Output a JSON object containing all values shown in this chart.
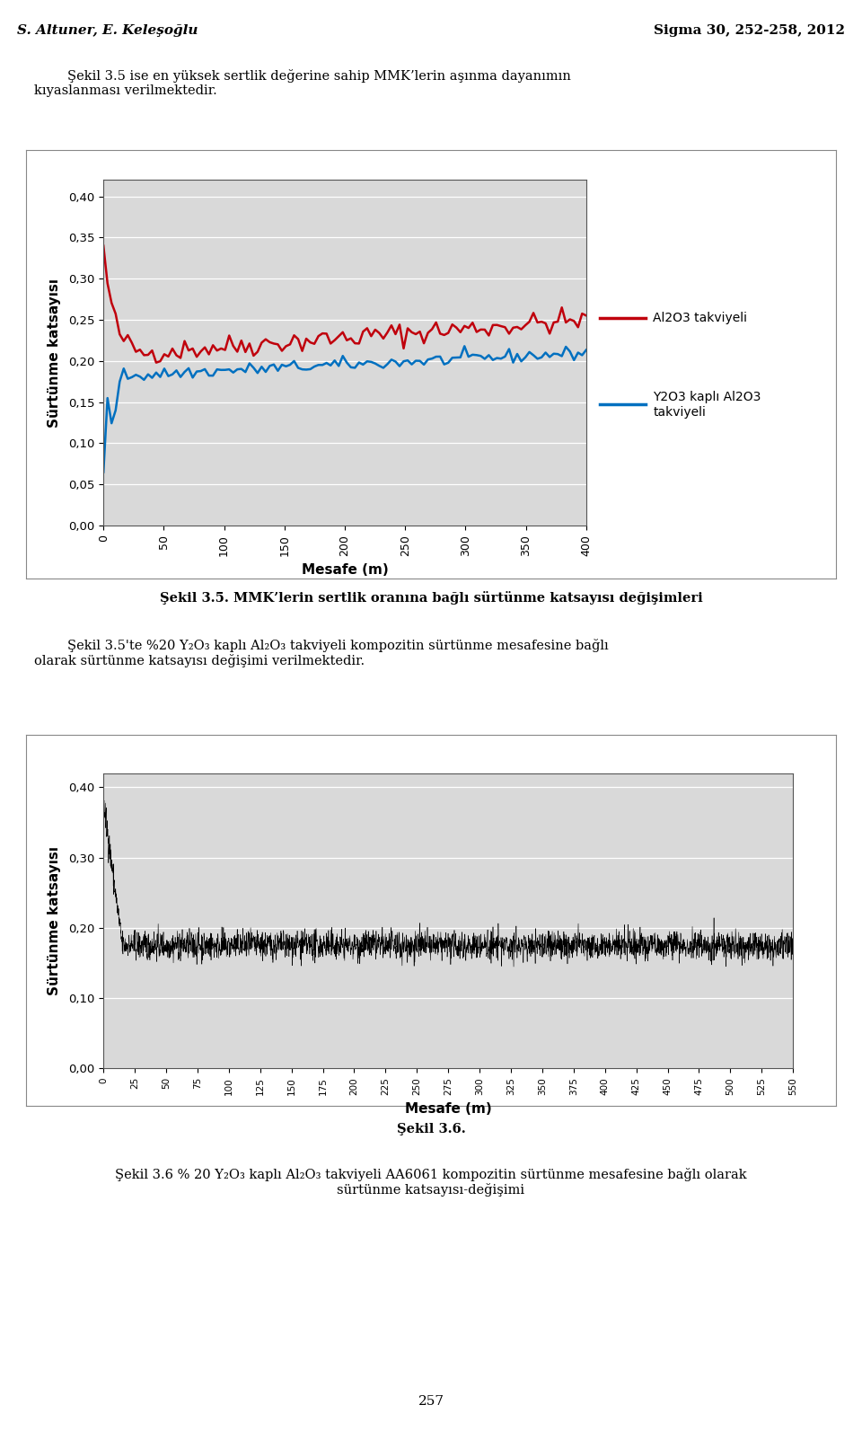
{
  "page_title_left": "S. Altuner, E. Keleşoğlu",
  "page_title_right": "Sigma 30, 252-258, 2012",
  "para1": "        Şekil 3.5 ise en yüksek sertlik değerine sahip MMK’lerin aşınma dayanımın\nkıyaslanması verilmektedir.",
  "chart1_ylabel": "Sürtünme katsayısı",
  "chart1_xlabel": "Mesafe (m)",
  "chart1_yticks": [
    0.0,
    0.05,
    0.1,
    0.15,
    0.2,
    0.25,
    0.3,
    0.35,
    0.4
  ],
  "chart1_xticks": [
    0,
    50,
    100,
    150,
    200,
    250,
    300,
    350,
    400
  ],
  "chart1_ylim": [
    0.0,
    0.42
  ],
  "chart1_xlim": [
    0,
    400
  ],
  "chart1_legend1": "Al2O3 takviyeli",
  "chart1_legend2": "Y2O3 kaplı Al2O3\ntakviyeli",
  "chart1_color1": "#C0000C",
  "chart1_color2": "#0070C0",
  "caption1_bold": "Şekil 3.5.",
  "caption1_rest": " MMK’lerin sertlik oranına bağlı sürtünme katsayısı değişimleri",
  "chart2_ylabel": "Sürtünme katsayısı",
  "chart2_xlabel": "Mesafe (m)",
  "chart2_yticks": [
    0.0,
    0.1,
    0.2,
    0.3,
    0.4
  ],
  "chart2_xticks": [
    0,
    25,
    50,
    75,
    100,
    125,
    150,
    175,
    200,
    225,
    250,
    275,
    300,
    325,
    350,
    375,
    400,
    425,
    450,
    475,
    500,
    525,
    550
  ],
  "chart2_ylim": [
    0.0,
    0.42
  ],
  "chart2_xlim": [
    0,
    550
  ],
  "chart2_color": "#000000",
  "caption2": "Şekil 3.6.",
  "page_number": "257",
  "background_color": "#ffffff",
  "chart_bg_color": "#d9d9d9"
}
